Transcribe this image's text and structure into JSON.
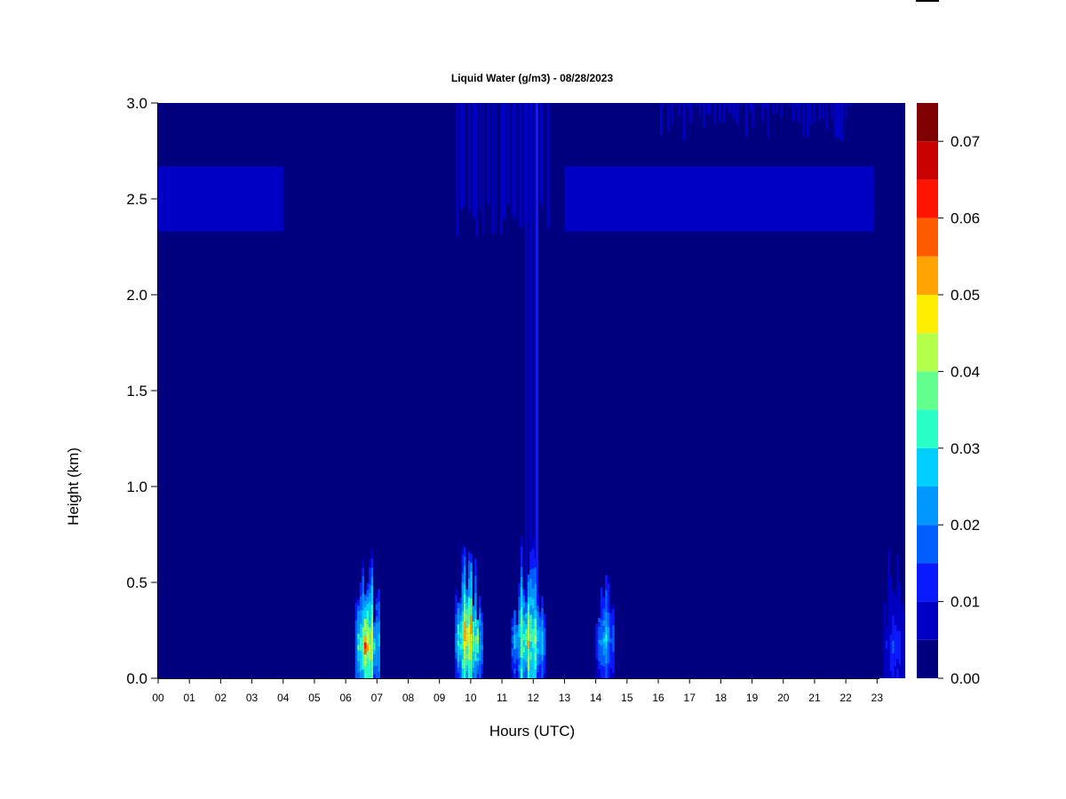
{
  "chart_data": {
    "type": "heatmap",
    "title": "Liquid Water (g/m3) - 08/28/2023",
    "xlabel": "Hours (UTC)",
    "ylabel": "Height (km)",
    "x_ticks": [
      "00",
      "01",
      "02",
      "03",
      "04",
      "05",
      "06",
      "07",
      "08",
      "09",
      "10",
      "11",
      "12",
      "13",
      "14",
      "15",
      "16",
      "17",
      "18",
      "19",
      "20",
      "21",
      "22",
      "23"
    ],
    "y_ticks": [
      "0.0",
      "0.5",
      "1.0",
      "1.5",
      "2.0",
      "2.5",
      "3.0"
    ],
    "xlim": [
      0,
      23.9
    ],
    "ylim": [
      0,
      3.0
    ],
    "colorbar": {
      "ticks": [
        "0.00",
        "0.01",
        "0.02",
        "0.03",
        "0.04",
        "0.05",
        "0.06",
        "0.07"
      ],
      "range": [
        0,
        0.075
      ],
      "levels": [
        0,
        0.005,
        0.01,
        0.015,
        0.02,
        0.025,
        0.03,
        0.035,
        0.04,
        0.045,
        0.05,
        0.055,
        0.06,
        0.065,
        0.07,
        0.075
      ],
      "colors": [
        "#00007f",
        "#0000c4",
        "#0a1aff",
        "#0060ff",
        "#0098ff",
        "#00d0ff",
        "#2affc8",
        "#62ff8e",
        "#b4ff4a",
        "#ffee00",
        "#ffa400",
        "#ff5c00",
        "#ff1400",
        "#c80000",
        "#7f0000"
      ]
    },
    "background_value": 0.0,
    "features": [
      {
        "label": "cloud layer 00-04 UTC",
        "x": [
          0.0,
          4.0
        ],
        "y": [
          2.33,
          2.67
        ],
        "core_y": [
          2.42,
          2.58
        ],
        "value": 0.007
      },
      {
        "label": "cloud layer 13-22 UTC",
        "x": [
          13.0,
          22.9
        ],
        "y": [
          2.33,
          2.67
        ],
        "core_y": [
          2.42,
          2.58
        ],
        "value": 0.007
      },
      {
        "label": "upper cloud 16-22 UTC",
        "x": [
          16.0,
          22.2
        ],
        "y": [
          2.8,
          3.0
        ],
        "value": 0.006
      },
      {
        "label": "column 10-12.5 UTC",
        "x": [
          9.5,
          12.5
        ],
        "y": [
          2.3,
          3.0
        ],
        "value": 0.006
      },
      {
        "label": "column 12 UTC",
        "x": [
          11.7,
          12.2
        ],
        "y": [
          0.0,
          3.0
        ],
        "value": 0.009
      },
      {
        "label": "near-surface 06-07 UTC",
        "x": [
          6.3,
          7.1
        ],
        "y": [
          0.0,
          0.5
        ],
        "peak_y": 0.17,
        "value": 0.06
      },
      {
        "label": "near-surface 10 UTC",
        "x": [
          9.5,
          10.4
        ],
        "y": [
          0.0,
          0.55
        ],
        "peak_y": 0.2,
        "value": 0.062
      },
      {
        "label": "near-surface 11.5-12.3 UTC",
        "x": [
          11.3,
          12.4
        ],
        "y": [
          0.0,
          0.5
        ],
        "peak_y": 0.2,
        "value": 0.05
      },
      {
        "label": "near-surface 14 UTC",
        "x": [
          14.0,
          14.6
        ],
        "y": [
          0.0,
          0.45
        ],
        "peak_y": 0.2,
        "value": 0.03
      },
      {
        "label": "near-surface 23 UTC",
        "x": [
          23.2,
          23.9
        ],
        "y": [
          0.0,
          0.45
        ],
        "peak_y": 0.15,
        "value": 0.013
      }
    ]
  }
}
